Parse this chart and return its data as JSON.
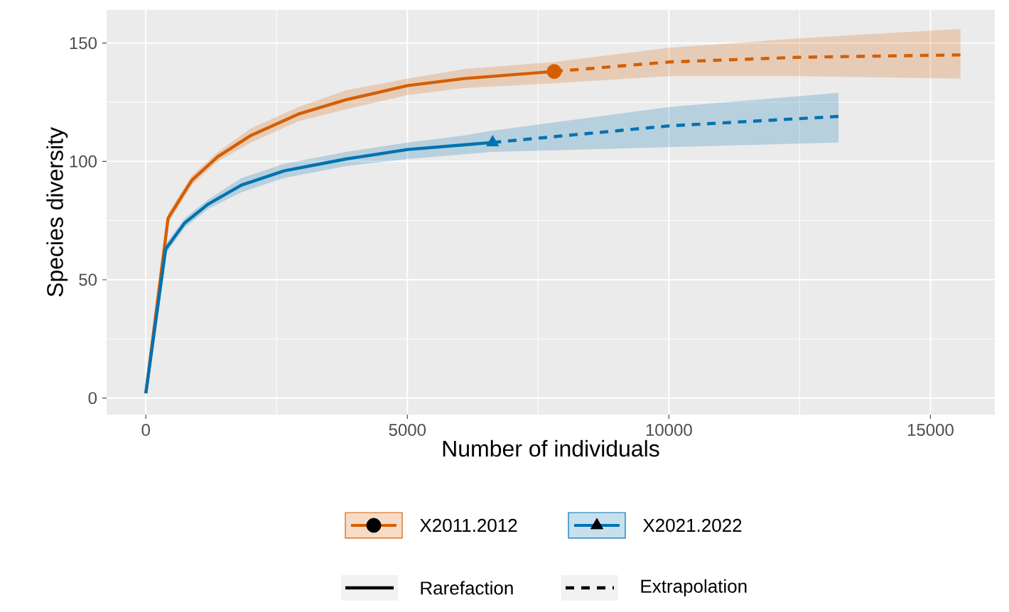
{
  "chart_data": {
    "type": "line",
    "xlabel": "Number of individuals",
    "ylabel": "Species diversity",
    "xlim": [
      -750,
      16230
    ],
    "ylim": [
      -7,
      164
    ],
    "xticks": [
      0,
      5000,
      10000,
      15000
    ],
    "yticks": [
      0,
      50,
      100,
      150
    ],
    "grid": true,
    "legend": "bottom",
    "annotations": [
      "Rarefaction",
      "Extrapolation"
    ],
    "series": [
      {
        "name": "X2011.2012",
        "line_style": "solid",
        "color": "#d55e00",
        "x": [
          0,
          426,
          879,
          1377,
          2011,
          2917,
          3822,
          5000,
          6087,
          7807
        ],
        "values": [
          2,
          76,
          92,
          102,
          111,
          120,
          126,
          132,
          135,
          138
        ],
        "lower": [
          2,
          74,
          90,
          100,
          108,
          117,
          122,
          128,
          131,
          133
        ],
        "upper": [
          2,
          78,
          94,
          104,
          114,
          123,
          130,
          135,
          139,
          142
        ]
      },
      {
        "line_style": "dashed",
        "color": "#d55e00",
        "x": [
          7807,
          10000,
          12500,
          15573
        ],
        "values": [
          138,
          142,
          144,
          145
        ],
        "lower": [
          133,
          136,
          136,
          135
        ],
        "upper": [
          142,
          148,
          152,
          156
        ]
      },
      {
        "type": "scatter",
        "marker": "circle",
        "color": "#d55e00",
        "x": [
          7807
        ],
        "values": [
          138
        ]
      },
      {
        "name": "X2021.2022",
        "line_style": "solid",
        "color": "#0072b2",
        "x": [
          0,
          380,
          743,
          1196,
          1830,
          2645,
          3822,
          5000,
          6087,
          6630
        ],
        "values": [
          2,
          63,
          74,
          82,
          90,
          96,
          101,
          105,
          107,
          108
        ],
        "lower": [
          2,
          61,
          72,
          80,
          87,
          93,
          98,
          101,
          103,
          104
        ],
        "upper": [
          2,
          65,
          76,
          84,
          93,
          99,
          104,
          108,
          111,
          113
        ]
      },
      {
        "line_style": "dashed",
        "color": "#0072b2",
        "x": [
          6630,
          10000,
          13242
        ],
        "values": [
          108,
          115,
          119
        ],
        "lower": [
          104,
          106,
          108
        ],
        "upper": [
          113,
          123,
          129
        ]
      },
      {
        "type": "scatter",
        "marker": "triangle",
        "color": "#0072b2",
        "x": [
          6630
        ],
        "values": [
          108
        ]
      }
    ]
  }
}
